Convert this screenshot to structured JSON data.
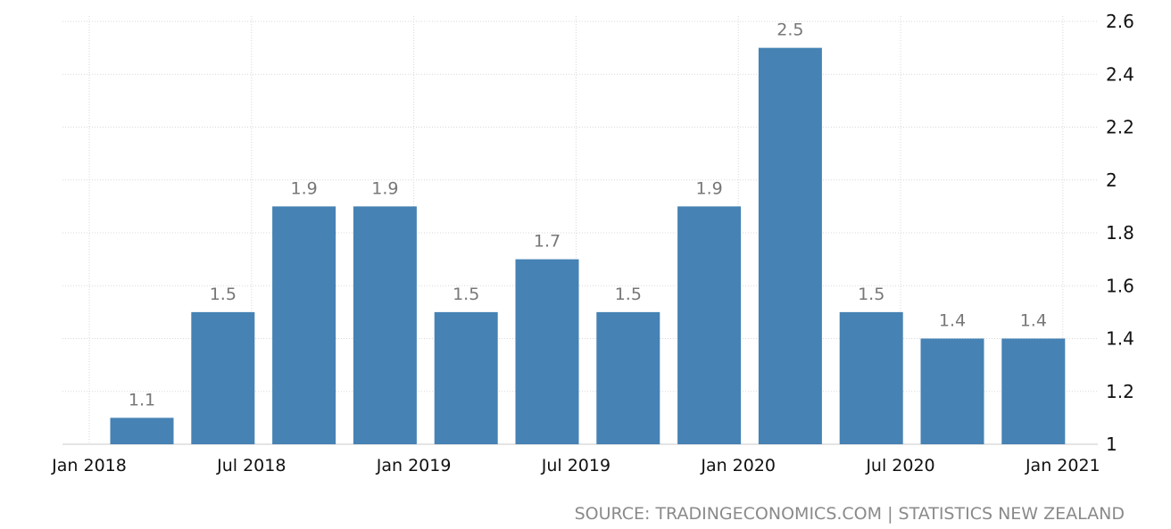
{
  "chart_data": {
    "type": "bar",
    "categories": [
      "Q1 2018",
      "Q2 2018",
      "Q3 2018",
      "Q4 2018",
      "Q1 2019",
      "Q2 2019",
      "Q3 2019",
      "Q4 2019",
      "Q1 2020",
      "Q2 2020",
      "Q3 2020",
      "Q4 2020"
    ],
    "values": [
      1.1,
      1.5,
      1.9,
      1.9,
      1.5,
      1.7,
      1.5,
      1.9,
      2.5,
      1.5,
      1.4,
      1.4
    ],
    "value_labels": [
      "1.1",
      "1.5",
      "1.9",
      "1.9",
      "1.5",
      "1.7",
      "1.5",
      "1.9",
      "2.5",
      "1.5",
      "1.4",
      "1.4"
    ],
    "x_tick_labels": [
      "Jan 2018",
      "Jul 2018",
      "Jan 2019",
      "Jul 2019",
      "Jan 2020",
      "Jul 2020",
      "Jan 2021"
    ],
    "y_tick_labels": [
      "1",
      "1.2",
      "1.4",
      "1.6",
      "1.8",
      "2",
      "2.2",
      "2.4",
      "2.6"
    ],
    "y_ticks": [
      1,
      1.2,
      1.4,
      1.6,
      1.8,
      2,
      2.2,
      2.4,
      2.6
    ],
    "ylim": [
      1,
      2.6
    ],
    "bar_color": "#4682b4",
    "y_axis_side": "right",
    "grid": true,
    "source": "SOURCE: TRADINGECONOMICS.COM | STATISTICS NEW ZEALAND"
  }
}
